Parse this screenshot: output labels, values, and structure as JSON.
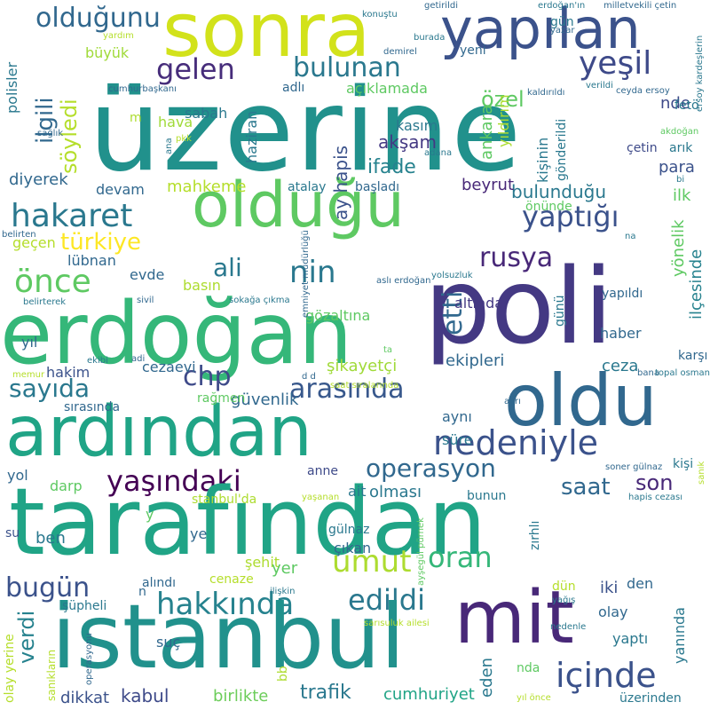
{
  "words": [
    {
      "text": "sonra",
      "color": "#d2e21b"
    },
    {
      "text": "yapılan",
      "color": "#3b528b"
    },
    {
      "text": "üzerine",
      "color": "#21918c"
    },
    {
      "text": "olduğunu",
      "color": "#31688e"
    },
    {
      "text": "gelen",
      "color": "#472d7b"
    },
    {
      "text": "bulunan",
      "color": "#2a788e"
    },
    {
      "text": "yeşil",
      "color": "#3e4a89"
    },
    {
      "text": "özel",
      "color": "#5ec962"
    },
    {
      "text": "ilgili",
      "color": "#31688e"
    },
    {
      "text": "söyledi",
      "color": "#b5de2b"
    },
    {
      "text": "olduğu",
      "color": "#5ec962"
    },
    {
      "text": "hakaret",
      "color": "#2a788e"
    },
    {
      "text": "yaptığı",
      "color": "#3b528b"
    },
    {
      "text": "türkiye",
      "color": "#fde725"
    },
    {
      "text": "önce",
      "color": "#5ec962"
    },
    {
      "text": "ali",
      "color": "#2a788e"
    },
    {
      "text": "nin",
      "color": "#2a788e"
    },
    {
      "text": "rusya",
      "color": "#482878"
    },
    {
      "text": "poli",
      "color": "#443983"
    },
    {
      "text": "erdoğan",
      "color": "#35b779"
    },
    {
      "text": "etti",
      "color": "#31688e"
    },
    {
      "text": "oldu",
      "color": "#31688e"
    },
    {
      "text": "ardından",
      "color": "#20a486"
    },
    {
      "text": "sayıda",
      "color": "#2a788e"
    },
    {
      "text": "chp",
      "color": "#3e4a89"
    },
    {
      "text": "arasında",
      "color": "#38588c"
    },
    {
      "text": "nedeniyle",
      "color": "#3b528b"
    },
    {
      "text": "operasyon",
      "color": "#31688e"
    },
    {
      "text": "yaşındaki",
      "color": "#440154"
    },
    {
      "text": "saat",
      "color": "#31688e"
    },
    {
      "text": "son",
      "color": "#482878"
    },
    {
      "text": "tarafından",
      "color": "#20a486"
    },
    {
      "text": "umut",
      "color": "#addc30"
    },
    {
      "text": "oran",
      "color": "#35b779"
    },
    {
      "text": "bugün",
      "color": "#3b528b"
    },
    {
      "text": "hakkında",
      "color": "#26828e"
    },
    {
      "text": "edildi",
      "color": "#2a788e"
    },
    {
      "text": "mit",
      "color": "#482878"
    },
    {
      "text": "istanbul",
      "color": "#21918c"
    },
    {
      "text": "içinde",
      "color": "#3b528b"
    },
    {
      "text": "verdi",
      "color": "#26828e"
    },
    {
      "text": "trafik",
      "color": "#2a788e"
    },
    {
      "text": "kabul",
      "color": "#3e4a89"
    },
    {
      "text": "birlikte",
      "color": "#6ccd5a"
    },
    {
      "text": "cumhuriyet",
      "color": "#20a486"
    },
    {
      "text": "dikkat",
      "color": "#3b528b"
    },
    {
      "text": "eden",
      "color": "#2a788e"
    },
    {
      "text": "akşam",
      "color": "#443983"
    },
    {
      "text": "ifade",
      "color": "#26828e"
    },
    {
      "text": "ay hapis",
      "color": "#3b528b"
    },
    {
      "text": "bulunduğu",
      "color": "#2a788e"
    },
    {
      "text": "beyrut",
      "color": "#482878"
    },
    {
      "text": "kasım",
      "color": "#2a788e"
    },
    {
      "text": "ankara",
      "color": "#5ec962"
    },
    {
      "text": "yıldırım",
      "color": "#addc30"
    },
    {
      "text": "kişinin",
      "color": "#2a788e"
    },
    {
      "text": "mahkeme",
      "color": "#b5de2b"
    },
    {
      "text": "devam",
      "color": "#31688e"
    },
    {
      "text": "diyerek",
      "color": "#31688e"
    },
    {
      "text": "haziran",
      "color": "#2a788e"
    },
    {
      "text": "sabah",
      "color": "#2a788e"
    },
    {
      "text": "açıklamada",
      "color": "#5ec962"
    },
    {
      "text": "adlı",
      "color": "#31688e"
    },
    {
      "text": "büyük",
      "color": "#a0da39"
    },
    {
      "text": "polisler",
      "color": "#2a788e"
    },
    {
      "text": "hava",
      "color": "#a0da39"
    },
    {
      "text": "nde",
      "color": "#3e4a89"
    },
    {
      "text": "para",
      "color": "#3b528b"
    },
    {
      "text": "ilk",
      "color": "#5ec962"
    },
    {
      "text": "çetin",
      "color": "#3e4a89"
    },
    {
      "text": "arık",
      "color": "#2a788e"
    },
    {
      "text": "gönderildi",
      "color": "#2a788e"
    },
    {
      "text": "yönelik",
      "color": "#5ec962"
    },
    {
      "text": "ilçesinde",
      "color": "#26828e"
    },
    {
      "text": "lübnan",
      "color": "#31688e"
    },
    {
      "text": "evde",
      "color": "#31688e"
    },
    {
      "text": "gözaltına",
      "color": "#5ec962"
    },
    {
      "text": "basın",
      "color": "#addc30"
    },
    {
      "text": "altında",
      "color": "#443983"
    },
    {
      "text": "günü",
      "color": "#2a788e"
    },
    {
      "text": "yapıldı",
      "color": "#31688e"
    },
    {
      "text": "haber",
      "color": "#31688e"
    },
    {
      "text": "geçen",
      "color": "#b5de2b"
    },
    {
      "text": "başladı",
      "color": "#31688e"
    },
    {
      "text": "atalay",
      "color": "#2a788e"
    },
    {
      "text": "önünde",
      "color": "#5ec962"
    },
    {
      "text": "yıl",
      "color": "#31688e"
    },
    {
      "text": "hakim",
      "color": "#3b528b"
    },
    {
      "text": "cezaevi",
      "color": "#31688e"
    },
    {
      "text": "şikayetçi",
      "color": "#a0da39"
    },
    {
      "text": "ekipleri",
      "color": "#31688e"
    },
    {
      "text": "ceza",
      "color": "#2a788e"
    },
    {
      "text": "karşı",
      "color": "#31688e"
    },
    {
      "text": "güvenlik",
      "color": "#31688e"
    },
    {
      "text": "rağmen",
      "color": "#5ec962"
    },
    {
      "text": "sırasında",
      "color": "#31688e"
    },
    {
      "text": "aynı",
      "color": "#31688e"
    },
    {
      "text": "süre",
      "color": "#2a788e"
    },
    {
      "text": "anne",
      "color": "#3e4a89"
    },
    {
      "text": "ait",
      "color": "#2a788e"
    },
    {
      "text": "olması",
      "color": "#2a788e"
    },
    {
      "text": "bunun",
      "color": "#2a788e"
    },
    {
      "text": "kişi",
      "color": "#2a788e"
    },
    {
      "text": "yol",
      "color": "#31688e"
    },
    {
      "text": "darp",
      "color": "#5ec962"
    },
    {
      "text": "ben",
      "color": "#2a788e"
    },
    {
      "text": "ye",
      "color": "#31688e"
    },
    {
      "text": "gülnaz",
      "color": "#2a788e"
    },
    {
      "text": "çıkan",
      "color": "#31688e"
    },
    {
      "text": "şehit",
      "color": "#addc30"
    },
    {
      "text": "zırhlı",
      "color": "#2a788e"
    },
    {
      "text": "yer",
      "color": "#5ec962"
    },
    {
      "text": "alındı",
      "color": "#31688e"
    },
    {
      "text": "cenaze",
      "color": "#b5de2b"
    },
    {
      "text": "şüpheli",
      "color": "#2a788e"
    },
    {
      "text": "den",
      "color": "#31688e"
    },
    {
      "text": "iki",
      "color": "#3b528b"
    },
    {
      "text": "olay",
      "color": "#31688e"
    },
    {
      "text": "yaptı",
      "color": "#2a788e"
    },
    {
      "text": "yanında",
      "color": "#2a788e"
    },
    {
      "text": "suç",
      "color": "#31688e"
    },
    {
      "text": "nda",
      "color": "#5ec962"
    },
    {
      "text": "üzerinden",
      "color": "#2a788e"
    },
    {
      "text": "bb",
      "color": "#addc30"
    },
    {
      "text": "olay yerine",
      "color": "#b5de2b"
    },
    {
      "text": "stanbul'da",
      "color": "#addc30"
    },
    {
      "text": "su",
      "color": "#3b528b"
    },
    {
      "text": "y",
      "color": "#5ec962"
    },
    {
      "text": "n",
      "color": "#31688e"
    },
    {
      "text": "m",
      "color": "#addc30"
    },
    {
      "text": "yeni",
      "color": "#31688e"
    },
    {
      "text": "gün",
      "color": "#2a788e"
    },
    {
      "text": "dün",
      "color": "#b5de2b"
    },
    {
      "text": "fetö",
      "color": "#2a788e"
    },
    {
      "text": "sanıkların",
      "color": "#b5de2b"
    },
    {
      "text": "konuştu",
      "color": "#2a788e"
    },
    {
      "text": "getirildi",
      "color": "#31688e"
    },
    {
      "text": "erdoğan'ın",
      "color": "#2a788e"
    },
    {
      "text": "milletvekili çetin",
      "color": "#31688e"
    },
    {
      "text": "yardım",
      "color": "#b5de2b"
    },
    {
      "text": "demirel",
      "color": "#31688e"
    },
    {
      "text": "burada",
      "color": "#2a788e"
    },
    {
      "text": "yazar",
      "color": "#31688e"
    },
    {
      "text": "ersoy kardeşlerin",
      "color": "#2a788e"
    },
    {
      "text": "cumhurbaşkanı",
      "color": "#31688e"
    },
    {
      "text": "kaldırıldı",
      "color": "#31688e"
    },
    {
      "text": "verildi",
      "color": "#2a788e"
    },
    {
      "text": "ceyda ersoy",
      "color": "#31688e"
    },
    {
      "text": "pkk",
      "color": "#b5de2b"
    },
    {
      "text": "adana",
      "color": "#2a788e"
    },
    {
      "text": "akdoğan",
      "color": "#5ec962"
    },
    {
      "text": "sağlık",
      "color": "#31688e"
    },
    {
      "text": "ana",
      "color": "#2a788e"
    },
    {
      "text": "bi",
      "color": "#2a788e"
    },
    {
      "text": "na",
      "color": "#2a788e"
    },
    {
      "text": "belirten",
      "color": "#31688e"
    },
    {
      "text": "aslı erdoğan",
      "color": "#31688e"
    },
    {
      "text": "yolsuzluk",
      "color": "#2a788e"
    },
    {
      "text": "sivil",
      "color": "#31688e"
    },
    {
      "text": "sokağa çıkma",
      "color": "#2a788e"
    },
    {
      "text": "belirterek",
      "color": "#2a788e"
    },
    {
      "text": "emniyet müdürlüğü",
      "color": "#31688e"
    },
    {
      "text": "ta",
      "color": "#5ec962"
    },
    {
      "text": "ekibi",
      "color": "#2a788e"
    },
    {
      "text": "adi",
      "color": "#31688e"
    },
    {
      "text": "memur",
      "color": "#b5de2b"
    },
    {
      "text": "d d",
      "color": "#31688e"
    },
    {
      "text": "bana",
      "color": "#31688e"
    },
    {
      "text": "topal osman",
      "color": "#2a788e"
    },
    {
      "text": "saat sıralarında",
      "color": "#b5de2b"
    },
    {
      "text": "ayrı",
      "color": "#31688e"
    },
    {
      "text": "soner gülnaz",
      "color": "#31688e"
    },
    {
      "text": "sanık",
      "color": "#b5de2b"
    },
    {
      "text": "yaşanan",
      "color": "#b5de2b"
    },
    {
      "text": "hapis cezası",
      "color": "#2a788e"
    },
    {
      "text": "ayşegül pürnek",
      "color": "#5ec962"
    },
    {
      "text": "ilişkin",
      "color": "#2a788e"
    },
    {
      "text": "sarısuluk ailesi",
      "color": "#b5de2b"
    },
    {
      "text": "yağış",
      "color": "#2a788e"
    },
    {
      "text": "nedenle",
      "color": "#2a788e"
    },
    {
      "text": "operasyonu",
      "color": "#31688e"
    },
    {
      "text": "yıl önce",
      "color": "#b5de2b"
    }
  ]
}
